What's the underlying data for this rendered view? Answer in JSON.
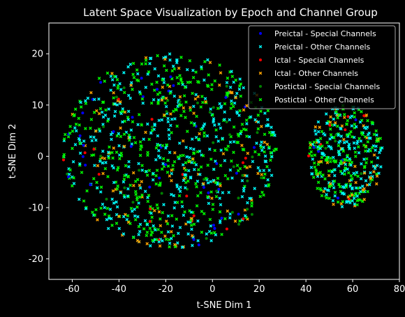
{
  "chart_data": {
    "type": "scatter",
    "title": "Latent Space Visualization by Epoch and Channel Group",
    "xlabel": "t-SNE Dim 1",
    "ylabel": "t-SNE Dim 2",
    "xlim": [
      -70,
      80
    ],
    "ylim": [
      -24,
      26
    ],
    "xticks": [
      -60,
      -40,
      -20,
      0,
      20,
      40,
      60,
      80
    ],
    "yticks": [
      -20,
      -10,
      0,
      10,
      20
    ],
    "grid": false,
    "legend_position": "top-right",
    "background": "#000000",
    "clusters": [
      {
        "cx": -18,
        "cy": 1,
        "rx": 46,
        "ry": 19,
        "share": 0.72
      },
      {
        "cx": 57,
        "cy": 0,
        "rx": 16,
        "ry": 10,
        "share": 0.28
      }
    ],
    "series": [
      {
        "name": "Preictal - Special Channels",
        "color": "#0000ff",
        "marker": "circle",
        "count": 45
      },
      {
        "name": "Preictal - Other Channels",
        "color": "#00ffff",
        "marker": "x",
        "count": 540
      },
      {
        "name": "Ictal - Special Channels",
        "color": "#ff0000",
        "marker": "circle",
        "count": 25
      },
      {
        "name": "Ictal - Other Channels",
        "color": "#ffa500",
        "marker": "x",
        "count": 160
      },
      {
        "name": "Postictal - Special Channels",
        "color": "#008000",
        "marker": "circle",
        "count": 50
      },
      {
        "name": "Postictal - Other Channels",
        "color": "#00ff00",
        "marker": "x",
        "count": 560
      }
    ]
  }
}
